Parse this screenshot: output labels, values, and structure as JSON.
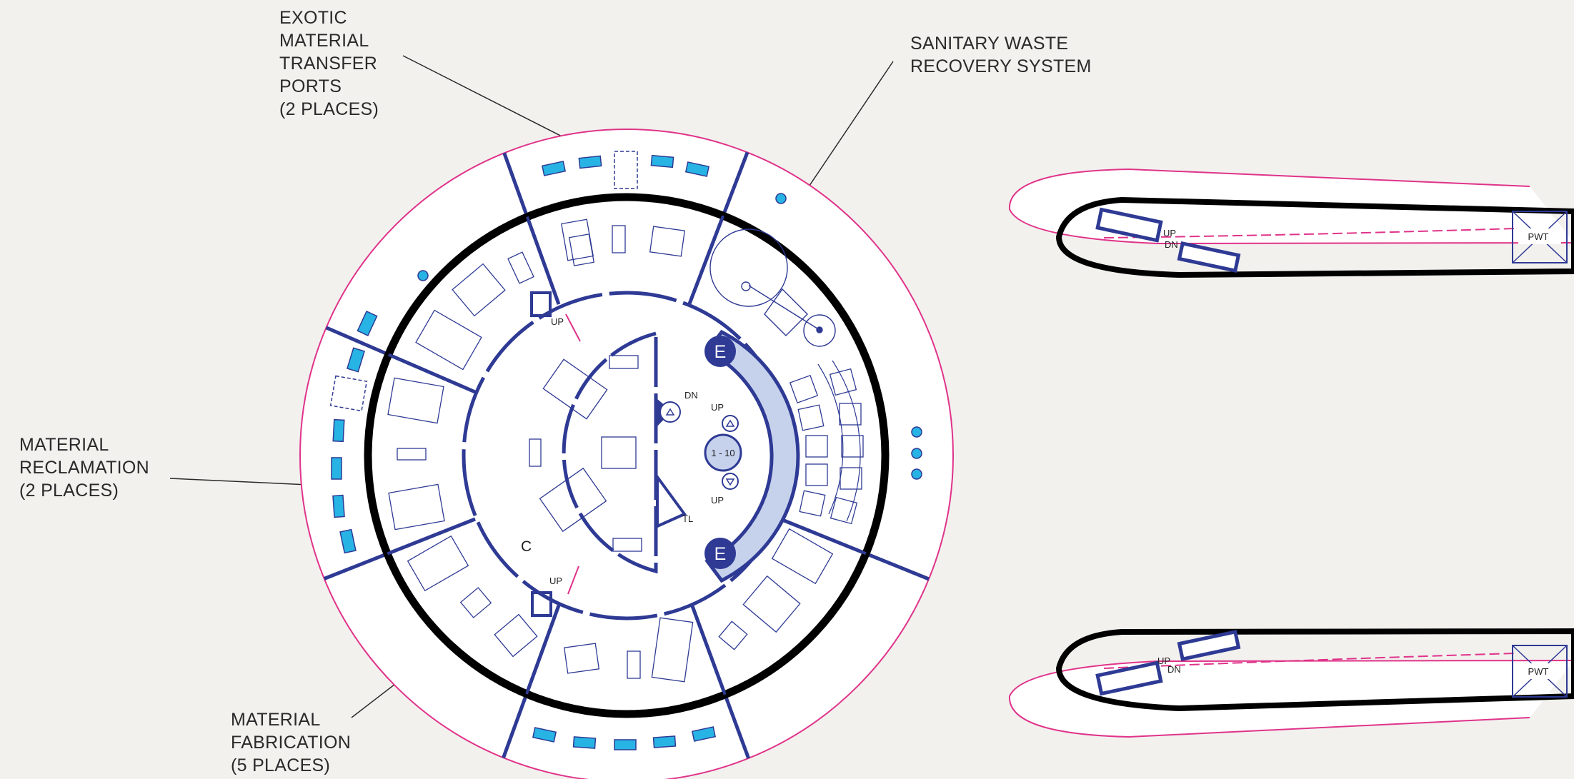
{
  "callouts": {
    "exotic": [
      "EXOTIC",
      "MATERIAL",
      "TRANSFER",
      "PORTS",
      "(2 PLACES)"
    ],
    "sanitary": [
      "SANITARY WASTE",
      "RECOVERY SYSTEM"
    ],
    "reclamation": [
      "MATERIAL",
      "RECLAMATION",
      "(2 PLACES)"
    ],
    "fabrication": [
      "MATERIAL",
      "FABRICATION",
      "(5 PLACES)"
    ]
  },
  "plan_labels": {
    "stair_up": "UP",
    "stair_dn": "DN",
    "elevator": "E",
    "lift_floors": "1 - 10",
    "toilet": "TL",
    "core": "C",
    "pwt": "PWT"
  },
  "colors": {
    "wall_blue": "#2e3a94",
    "accent_cyan": "#27b4e4",
    "outline_magenta": "#e0338a",
    "core_fill": "#c6d2ec",
    "black_ring": "#000000"
  }
}
